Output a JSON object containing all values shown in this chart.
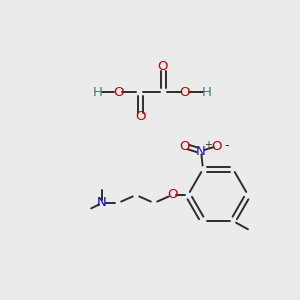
{
  "background_color": "#ebebeb",
  "atom_colors": {
    "C": "#2d2d2d",
    "O": "#cc0000",
    "N_amine": "#0000cc",
    "N_nitro": "#1a1aff",
    "H": "#3d7a7a"
  },
  "bond_color": "#2d2d2d",
  "bond_width": 1.4,
  "fig_width": 3.0,
  "fig_height": 3.0,
  "dpi": 100
}
